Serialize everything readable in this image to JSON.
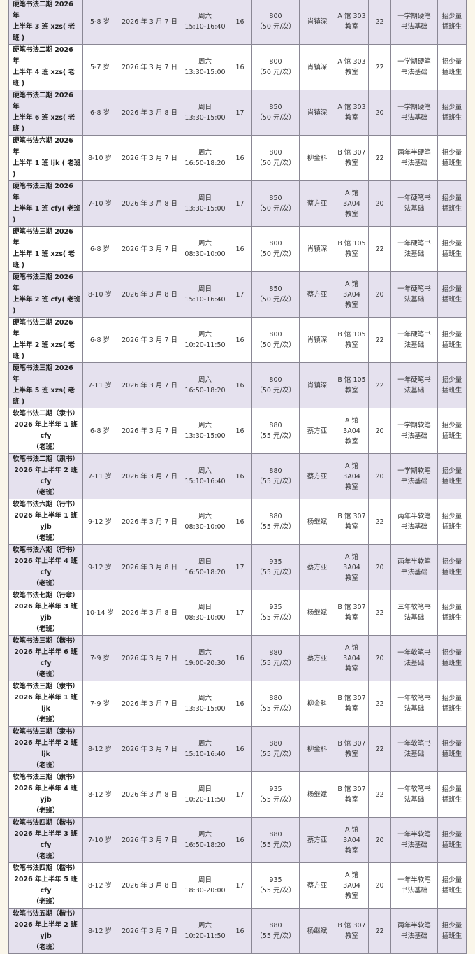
{
  "rows": [
    {
      "name": [
        "硬笔书法二期 2026 年",
        "上半年 3 班 xzs( 老班 )"
      ],
      "age": "5-8 岁",
      "date": "2026 年 3 月 7 日",
      "day": "周六",
      "time": "15:10-16:40",
      "sessions": "16",
      "price": "800",
      "per": "（50 元/次）",
      "teacher": "肖镇深",
      "room": [
        "A 馆 303",
        "教室"
      ],
      "cap": "22",
      "req": [
        "一学期硬笔",
        "书法基础"
      ],
      "note": [
        "招少量",
        "插班生"
      ]
    },
    {
      "name": [
        "硬笔书法二期 2026 年",
        "上半年 4 班 xzs( 老班 )"
      ],
      "age": "5-7 岁",
      "date": "2026 年 3 月 7 日",
      "day": "周六",
      "time": "13:30-15:00",
      "sessions": "16",
      "price": "800",
      "per": "（50 元/次）",
      "teacher": "肖镇深",
      "room": [
        "A 馆 303",
        "教室"
      ],
      "cap": "22",
      "req": [
        "一学期硬笔",
        "书法基础"
      ],
      "note": [
        "招少量",
        "插班生"
      ]
    },
    {
      "name": [
        "硬笔书法二期 2026 年",
        "上半年 6 班 xzs( 老班 )"
      ],
      "age": "6-8 岁",
      "date": "2026 年 3 月 8 日",
      "day": "周日",
      "time": "13:30-15:00",
      "sessions": "17",
      "price": "850",
      "per": "（50 元/次）",
      "teacher": "肖镇深",
      "room": [
        "A 馆 303",
        "教室"
      ],
      "cap": "20",
      "req": [
        "一学期硬笔",
        "书法基础"
      ],
      "note": [
        "招少量",
        "插班生"
      ]
    },
    {
      "name": [
        "硬笔书法六期 2026 年",
        "上半年 1 班 ljk ( 老班 )"
      ],
      "age": "8-10 岁",
      "date": "2026 年 3 月 7 日",
      "day": "周六",
      "time": "16:50-18:20",
      "sessions": "16",
      "price": "800",
      "per": "（50 元/次）",
      "teacher": "柳金科",
      "room": [
        "B 馆 307",
        "教室"
      ],
      "cap": "22",
      "req": [
        "两年半硬笔",
        "书法基础"
      ],
      "note": [
        "招少量",
        "插班生"
      ]
    },
    {
      "name": [
        "硬笔书法三期 2026 年",
        "上半年 1 班 cfy( 老班 )"
      ],
      "age": "7-10 岁",
      "date": "2026 年 3 月 8 日",
      "day": "周日",
      "time": "13:30-15:00",
      "sessions": "17",
      "price": "850",
      "per": "（50 元/次）",
      "teacher": "蔡方亚",
      "room": [
        "A 馆 3A04",
        "教室"
      ],
      "cap": "20",
      "req": [
        "一年硬笔书",
        "法基础"
      ],
      "note": [
        "招少量",
        "插班生"
      ]
    },
    {
      "name": [
        "硬笔书法三期 2026 年",
        "上半年 1 班 xzs( 老班 )"
      ],
      "age": "6-8 岁",
      "date": "2026 年 3 月 7 日",
      "day": "周六",
      "time": "08:30-10:00",
      "sessions": "16",
      "price": "800",
      "per": "（50 元/次）",
      "teacher": "肖镇深",
      "room": [
        "B 馆 105",
        "教室"
      ],
      "cap": "22",
      "req": [
        "一年硬笔书",
        "法基础"
      ],
      "note": [
        "招少量",
        "插班生"
      ]
    },
    {
      "name": [
        "硬笔书法三期 2026 年",
        "上半年 2 班 cfy( 老班 )"
      ],
      "age": "8-10 岁",
      "date": "2026 年 3 月 8 日",
      "day": "周日",
      "time": "15:10-16:40",
      "sessions": "17",
      "price": "850",
      "per": "（50 元/次）",
      "teacher": "蔡方亚",
      "room": [
        "A 馆 3A04",
        "教室"
      ],
      "cap": "20",
      "req": [
        "一年硬笔书",
        "法基础"
      ],
      "note": [
        "招少量",
        "插班生"
      ]
    },
    {
      "name": [
        "硬笔书法三期 2026 年",
        "上半年 2 班 xzs( 老班 )"
      ],
      "age": "6-8 岁",
      "date": "2026 年 3 月 7 日",
      "day": "周六",
      "time": "10:20-11:50",
      "sessions": "16",
      "price": "800",
      "per": "（50 元/次）",
      "teacher": "肖镇深",
      "room": [
        "B 馆 105",
        "教室"
      ],
      "cap": "22",
      "req": [
        "一年硬笔书",
        "法基础"
      ],
      "note": [
        "招少量",
        "插班生"
      ]
    },
    {
      "name": [
        "硬笔书法三期 2026 年",
        "上半年 5 班 xzs( 老班 )"
      ],
      "age": "7-11 岁",
      "date": "2026 年 3 月 7 日",
      "day": "周六",
      "time": "16:50-18:20",
      "sessions": "16",
      "price": "800",
      "per": "（50 元/次）",
      "teacher": "肖镇深",
      "room": [
        "B 馆 105",
        "教室"
      ],
      "cap": "22",
      "req": [
        "一年硬笔书",
        "法基础"
      ],
      "note": [
        "招少量",
        "插班生"
      ]
    },
    {
      "name": [
        "软笔书法二期（隶书）",
        "2026 年上半年 1 班 cfy",
        "（老班）"
      ],
      "age": "6-8 岁",
      "date": "2026 年 3 月 7 日",
      "day": "周六",
      "time": "13:30-15:00",
      "sessions": "16",
      "price": "880",
      "per": "（55 元/次）",
      "teacher": "蔡方亚",
      "room": [
        "A 馆 3A04",
        "教室"
      ],
      "cap": "20",
      "req": [
        "一学期软笔",
        "书法基础"
      ],
      "note": [
        "招少量",
        "插班生"
      ]
    },
    {
      "name": [
        "软笔书法二期（隶书）",
        "2026 年上半年 2 班 cfy",
        "（老班）"
      ],
      "age": "7-11 岁",
      "date": "2026 年 3 月 7 日",
      "day": "周六",
      "time": "15:10-16:40",
      "sessions": "16",
      "price": "880",
      "per": "（55 元/次）",
      "teacher": "蔡方亚",
      "room": [
        "A 馆 3A04",
        "教室"
      ],
      "cap": "20",
      "req": [
        "一学期软笔",
        "书法基础"
      ],
      "note": [
        "招少量",
        "插班生"
      ]
    },
    {
      "name": [
        "软笔书法六期（行书）",
        "2026 年上半年 1 班 yjb",
        "（老班）"
      ],
      "age": "9-12 岁",
      "date": "2026 年 3 月 7 日",
      "day": "周六",
      "time": "08:30-10:00",
      "sessions": "16",
      "price": "880",
      "per": "（55 元/次）",
      "teacher": "杨继斌",
      "room": [
        "B 馆 307",
        "教室"
      ],
      "cap": "22",
      "req": [
        "两年半软笔",
        "书法基础"
      ],
      "note": [
        "招少量",
        "插班生"
      ]
    },
    {
      "name": [
        "软笔书法六期（行书）",
        "2026 年上半年 4 班 cfy",
        "（老班）"
      ],
      "age": "9-12 岁",
      "date": "2026 年 3 月 8 日",
      "day": "周日",
      "time": "16:50-18:20",
      "sessions": "17",
      "price": "935",
      "per": "（55 元/次）",
      "teacher": "蔡方亚",
      "room": [
        "A 馆 3A04",
        "教室"
      ],
      "cap": "20",
      "req": [
        "两年半软笔",
        "书法基础"
      ],
      "note": [
        "招少量",
        "插班生"
      ]
    },
    {
      "name": [
        "软笔书法七期（行章）",
        "2026 年上半年 3 班 yjb",
        "（老班）"
      ],
      "age": "10-14 岁",
      "date": "2026 年 3 月 8 日",
      "day": "周日",
      "time": "08:30-10:00",
      "sessions": "17",
      "price": "935",
      "per": "（55 元/次）",
      "teacher": "杨继斌",
      "room": [
        "B 馆 307",
        "教室"
      ],
      "cap": "22",
      "req": [
        "三年软笔书",
        "法基础"
      ],
      "note": [
        "招少量",
        "插班生"
      ]
    },
    {
      "name": [
        "软笔书法三期（楷书）",
        "2026 年上半年 6 班 cfy",
        "（老班）"
      ],
      "age": "7-9 岁",
      "date": "2026 年 3 月 7 日",
      "day": "周六",
      "time": "19:00-20:30",
      "sessions": "16",
      "price": "880",
      "per": "（55 元/次）",
      "teacher": "蔡方亚",
      "room": [
        "A 馆 3A04",
        "教室"
      ],
      "cap": "20",
      "req": [
        "一年软笔书",
        "法基础"
      ],
      "note": [
        "招少量",
        "插班生"
      ]
    },
    {
      "name": [
        "软笔书法三期（隶书）",
        "2026 年上半年 1 班 ljk",
        "（老班）"
      ],
      "age": "7-9 岁",
      "date": "2026 年 3 月 7 日",
      "day": "周六",
      "time": "13:30-15:00",
      "sessions": "16",
      "price": "880",
      "per": "（55 元/次）",
      "teacher": "柳金科",
      "room": [
        "B 馆 307",
        "教室"
      ],
      "cap": "22",
      "req": [
        "一年软笔书",
        "法基础"
      ],
      "note": [
        "招少量",
        "插班生"
      ]
    },
    {
      "name": [
        "软笔书法三期（隶书）",
        "2026 年上半年 2 班 ljk",
        "（老班）"
      ],
      "age": "8-12 岁",
      "date": "2026 年 3 月 7 日",
      "day": "周六",
      "time": "15:10-16:40",
      "sessions": "16",
      "price": "880",
      "per": "（55 元/次）",
      "teacher": "柳金科",
      "room": [
        "B 馆 307",
        "教室"
      ],
      "cap": "22",
      "req": [
        "一年软笔书",
        "法基础"
      ],
      "note": [
        "招少量",
        "插班生"
      ]
    },
    {
      "name": [
        "软笔书法三期（隶书）",
        "2026 年上半年 4 班 yjb",
        "（老班）"
      ],
      "age": "8-12 岁",
      "date": "2026 年 3 月 8 日",
      "day": "周日",
      "time": "10:20-11:50",
      "sessions": "17",
      "price": "935",
      "per": "（55 元/次）",
      "teacher": "杨继斌",
      "room": [
        "B 馆 307",
        "教室"
      ],
      "cap": "22",
      "req": [
        "一年软笔书",
        "法基础"
      ],
      "note": [
        "招少量",
        "插班生"
      ]
    },
    {
      "name": [
        "软笔书法四期（楷书）",
        "2026 年上半年 3 班 cfy",
        "（老班）"
      ],
      "age": "7-10 岁",
      "date": "2026 年 3 月 7 日",
      "day": "周六",
      "time": "16:50-18:20",
      "sessions": "16",
      "price": "880",
      "per": "（55 元/次）",
      "teacher": "蔡方亚",
      "room": [
        "A 馆 3A04",
        "教室"
      ],
      "cap": "20",
      "req": [
        "一年半软笔",
        "书法基础"
      ],
      "note": [
        "招少量",
        "插班生"
      ]
    },
    {
      "name": [
        "软笔书法四期（楷书）",
        "2026 年上半年 5 班 cfy",
        "（老班）"
      ],
      "age": "8-12 岁",
      "date": "2026 年 3 月 8 日",
      "day": "周日",
      "time": "18:30-20:00",
      "sessions": "17",
      "price": "935",
      "per": "（55 元/次）",
      "teacher": "蔡方亚",
      "room": [
        "A 馆 3A04",
        "教室"
      ],
      "cap": "20",
      "req": [
        "一年半软笔",
        "书法基础"
      ],
      "note": [
        "招少量",
        "插班生"
      ]
    },
    {
      "name": [
        "软笔书法五期（楷书）",
        "2026 年上半年 2 班 yjb",
        "（老班）"
      ],
      "age": "8-12 岁",
      "date": "2026 年 3 月 7 日",
      "day": "周六",
      "time": "10:20-11:50",
      "sessions": "16",
      "price": "880",
      "per": "（55 元/次）",
      "teacher": "杨继斌",
      "room": [
        "B 馆 307",
        "教室"
      ],
      "cap": "22",
      "req": [
        "两年半软笔",
        "书法基础"
      ],
      "note": [
        "招少量",
        "插班生"
      ]
    }
  ]
}
